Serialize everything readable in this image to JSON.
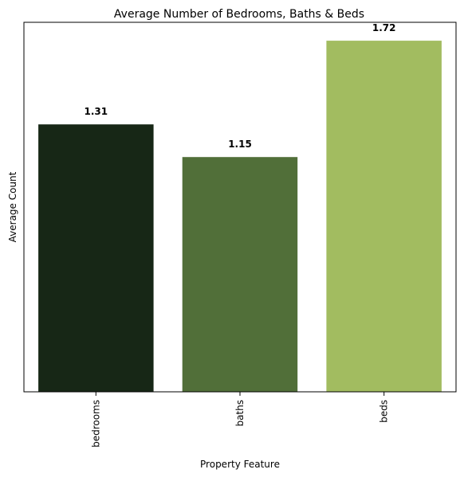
{
  "chart_data": {
    "type": "bar",
    "title": "Average Number of Bedrooms, Baths & Beds",
    "xlabel": "Property Feature",
    "ylabel": "Average Count",
    "categories": [
      "bedrooms",
      "baths",
      "beds"
    ],
    "values": [
      1.31,
      1.15,
      1.72
    ],
    "data_labels": [
      "1.31",
      "1.15",
      "1.72"
    ],
    "colors": [
      "#172716",
      "#516f39",
      "#a2bc60"
    ],
    "ylim": [
      0,
      1.81
    ],
    "y_ticks_visible": false,
    "x_tick_rotation": "vertical",
    "grid": false,
    "legend": "none"
  }
}
